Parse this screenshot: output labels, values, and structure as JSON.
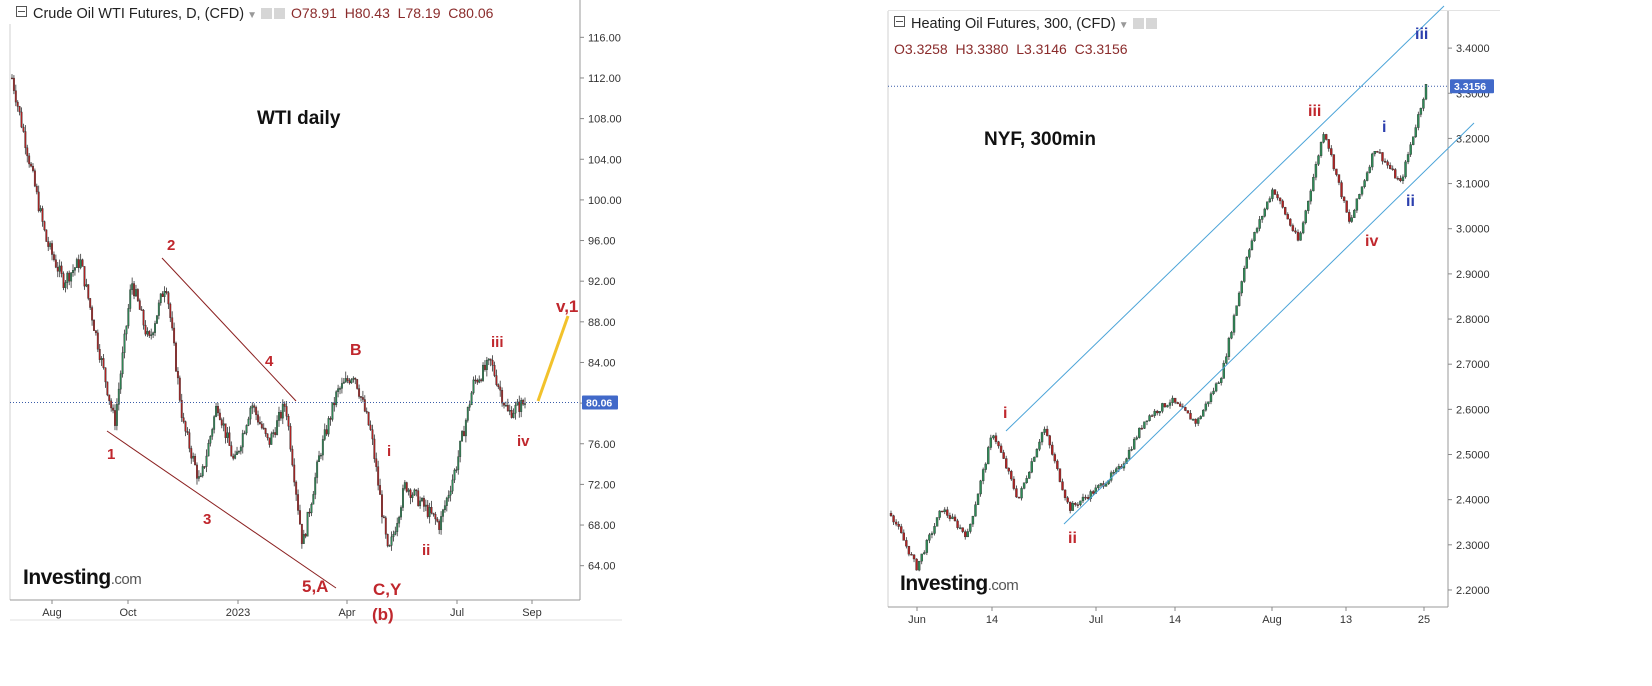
{
  "left_chart": {
    "header": {
      "title": "Crude Oil WTI Futures, D, (CFD)",
      "open": "O78.91",
      "high": "H80.43",
      "low": "L78.19",
      "close": "C80.06"
    },
    "label": "WTI daily",
    "logo": "Investing",
    "logo_suffix": ".com",
    "current_price": "80.06",
    "y_ticks": [
      "116.00",
      "112.00",
      "108.00",
      "104.00",
      "100.00",
      "96.00",
      "92.00",
      "88.00",
      "84.00",
      "80.00",
      "76.00",
      "72.00",
      "68.00",
      "64.00"
    ],
    "x_ticks": [
      "Aug",
      "Oct",
      "2023",
      "Apr",
      "Jul",
      "Sep"
    ],
    "wave_labels": [
      "1",
      "2",
      "3",
      "4",
      "5,A",
      "B",
      "i",
      "ii",
      "iii",
      "iv",
      "v,1",
      "C,Y",
      "(b)"
    ]
  },
  "right_chart": {
    "header": {
      "title": "Heating Oil Futures, 300, (CFD)",
      "open": "O3.3258",
      "high": "H3.3380",
      "low": "L3.3146",
      "close": "C3.3156"
    },
    "label": "NYF, 300min",
    "logo": "Investing",
    "logo_suffix": ".com",
    "current_price": "3.3156",
    "y_ticks": [
      "3.4000",
      "3.3000",
      "3.2000",
      "3.1000",
      "3.0000",
      "2.9000",
      "2.8000",
      "2.7000",
      "2.6000",
      "2.5000",
      "2.4000",
      "2.3000",
      "2.2000"
    ],
    "x_ticks": [
      "Jun",
      "14",
      "Jul",
      "14",
      "Aug",
      "13",
      "25"
    ],
    "wave_labels": [
      "i",
      "ii",
      "iii",
      "iv",
      "i",
      "ii",
      "iii"
    ]
  },
  "chart_data": [
    {
      "type": "candlestick",
      "title": "Crude Oil WTI Futures, D, (CFD)",
      "ylim": [
        62,
        118
      ],
      "y_ticks": [
        116,
        112,
        108,
        104,
        100,
        96,
        92,
        88,
        84,
        80,
        76,
        72,
        68,
        64
      ],
      "x_ticks": [
        "Aug",
        "Oct",
        "2023",
        "Apr",
        "Jul",
        "Sep"
      ],
      "close_path": [
        {
          "x": "Jul 2022",
          "y": 112
        },
        {
          "x": "Jul 2022",
          "y": 104
        },
        {
          "x": "Aug 2022",
          "y": 96
        },
        {
          "x": "Aug 2022",
          "y": 92
        },
        {
          "x": "Aug 2022",
          "y": 94
        },
        {
          "x": "Sep 2022",
          "y": 86
        },
        {
          "x": "Sep 2022",
          "y": 78
        },
        {
          "x": "Oct 2022",
          "y": 92
        },
        {
          "x": "Oct 2022",
          "y": 86
        },
        {
          "x": "Nov 2022",
          "y": 92
        },
        {
          "x": "Nov 2022",
          "y": 78
        },
        {
          "x": "Dec 2022",
          "y": 72
        },
        {
          "x": "Dec 2022",
          "y": 80
        },
        {
          "x": "Jan 2023",
          "y": 74
        },
        {
          "x": "Jan 2023",
          "y": 80
        },
        {
          "x": "Feb 2023",
          "y": 76
        },
        {
          "x": "Feb 2023",
          "y": 80
        },
        {
          "x": "Mar 2023",
          "y": 66
        },
        {
          "x": "Mar 2023",
          "y": 75
        },
        {
          "x": "Apr 2023",
          "y": 81
        },
        {
          "x": "Apr 2023",
          "y": 83
        },
        {
          "x": "Apr 2023",
          "y": 77
        },
        {
          "x": "May 2023",
          "y": 65
        },
        {
          "x": "May 2023",
          "y": 72
        },
        {
          "x": "Jun 2023",
          "y": 70
        },
        {
          "x": "Jun 2023",
          "y": 68
        },
        {
          "x": "Jul 2023",
          "y": 74
        },
        {
          "x": "Jul 2023",
          "y": 82
        },
        {
          "x": "Aug 2023",
          "y": 84
        },
        {
          "x": "Aug 2023",
          "y": 79
        },
        {
          "x": "Aug 2023",
          "y": 80.06
        }
      ],
      "last": 80.06
    },
    {
      "type": "candlestick",
      "title": "Heating Oil Futures, 300, (CFD)",
      "ylim": [
        2.18,
        3.46
      ],
      "y_ticks": [
        3.4,
        3.3,
        3.2,
        3.1,
        3.0,
        2.9,
        2.8,
        2.7,
        2.6,
        2.5,
        2.4,
        2.3,
        2.2
      ],
      "x_ticks": [
        "Jun",
        "14",
        "Jul",
        "14",
        "Aug",
        "13",
        "25"
      ],
      "close_path": [
        {
          "x": "Jun",
          "y": 2.37
        },
        {
          "x": "Jun",
          "y": 2.25
        },
        {
          "x": "Jun",
          "y": 2.38
        },
        {
          "x": "Jun",
          "y": 2.32
        },
        {
          "x": "14",
          "y": 2.55
        },
        {
          "x": "14",
          "y": 2.4
        },
        {
          "x": "14",
          "y": 2.56
        },
        {
          "x": "Jul",
          "y": 2.38
        },
        {
          "x": "Jul",
          "y": 2.42
        },
        {
          "x": "Jul",
          "y": 2.47
        },
        {
          "x": "14",
          "y": 2.58
        },
        {
          "x": "14",
          "y": 2.62
        },
        {
          "x": "14",
          "y": 2.57
        },
        {
          "x": "14",
          "y": 2.68
        },
        {
          "x": "Aug",
          "y": 2.95
        },
        {
          "x": "Aug",
          "y": 3.09
        },
        {
          "x": "Aug",
          "y": 2.97
        },
        {
          "x": "13",
          "y": 3.22
        },
        {
          "x": "13",
          "y": 3.01
        },
        {
          "x": "13",
          "y": 3.18
        },
        {
          "x": "25",
          "y": 3.1
        },
        {
          "x": "25",
          "y": 3.3156
        }
      ],
      "last": 3.3156
    }
  ]
}
